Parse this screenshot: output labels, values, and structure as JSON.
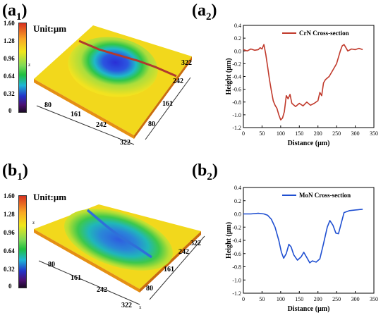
{
  "panels": {
    "a1": {
      "letter": "(a",
      "sub": "1",
      "close": ")"
    },
    "a2": {
      "letter": "(a",
      "sub": "2",
      "close": ")"
    },
    "b1": {
      "letter": "(b",
      "sub": "1",
      "close": ")"
    },
    "b2": {
      "letter": "(b",
      "sub": "2",
      "close": ")"
    }
  },
  "maps": {
    "unit": "Unit:μm",
    "colorbar_ticks": [
      "1.60",
      "1.28",
      "0.96",
      "0.64",
      "0.32",
      "0"
    ],
    "axis_ticks": [
      "80",
      "161",
      "242",
      "322"
    ],
    "z_label": "z",
    "x_label": "x"
  },
  "chart_data": [
    {
      "type": "line",
      "title": "",
      "legend": "CrN  Cross-section",
      "legend_position": "top-right",
      "xlabel": "Distance (μm)",
      "ylabel": "Height (μm)",
      "xlim": [
        0,
        350
      ],
      "ylim": [
        -1.2,
        0.4
      ],
      "xticks": [
        0,
        50,
        100,
        150,
        200,
        250,
        300,
        350
      ],
      "yticks": [
        0.4,
        0.2,
        0.0,
        -0.2,
        -0.4,
        -0.6,
        -0.8,
        -1.0,
        -1.2
      ],
      "ytick_labels": [
        "0.4",
        "0.2",
        "0.0",
        "-0.2",
        "-0.4",
        "-0.6",
        "-0.8",
        "-1.0",
        "-1.2"
      ],
      "color": "#c0392b",
      "series": [
        {
          "x": [
            0,
            10,
            20,
            30,
            40,
            45,
            50,
            55,
            60,
            65,
            70,
            75,
            80,
            85,
            90,
            95,
            100,
            105,
            110,
            115,
            120,
            125,
            130,
            140,
            150,
            160,
            170,
            180,
            190,
            200,
            205,
            210,
            215,
            220,
            230,
            240,
            250,
            260,
            265,
            270,
            275,
            280,
            290,
            300,
            310,
            320
          ],
          "y": [
            0.02,
            0.0,
            0.03,
            0.01,
            0.02,
            0.05,
            0.03,
            0.1,
            -0.05,
            -0.25,
            -0.45,
            -0.62,
            -0.78,
            -0.85,
            -0.9,
            -1.0,
            -1.08,
            -1.05,
            -0.95,
            -0.7,
            -0.75,
            -0.68,
            -0.82,
            -0.87,
            -0.82,
            -0.86,
            -0.8,
            -0.85,
            -0.82,
            -0.78,
            -0.65,
            -0.7,
            -0.5,
            -0.45,
            -0.4,
            -0.3,
            -0.2,
            0.0,
            0.08,
            0.1,
            0.05,
            0.0,
            0.03,
            0.02,
            0.04,
            0.02
          ]
        }
      ]
    },
    {
      "type": "line",
      "title": "",
      "legend": "MoN  Cross-section",
      "legend_position": "top-right",
      "xlabel": "Distance (μm)",
      "ylabel": "Height (μm)",
      "xlim": [
        0,
        350
      ],
      "ylim": [
        -1.2,
        0.4
      ],
      "xticks": [
        0,
        50,
        100,
        150,
        200,
        250,
        300,
        350
      ],
      "yticks": [
        0.4,
        0.2,
        0.0,
        -0.2,
        -0.4,
        -0.6,
        -0.8,
        -1.0,
        -1.2
      ],
      "ytick_labels": [
        "0.4",
        "0.2",
        "0.0",
        "-0.2",
        "-0.4",
        "-0.6",
        "-0.8",
        "-1.0",
        "-1.2"
      ],
      "color": "#1f4fd1",
      "series": [
        {
          "x": [
            0,
            20,
            40,
            55,
            65,
            75,
            85,
            95,
            102,
            108,
            115,
            122,
            128,
            135,
            145,
            155,
            162,
            170,
            178,
            185,
            195,
            205,
            215,
            225,
            232,
            240,
            248,
            255,
            262,
            270,
            285,
            300,
            320
          ],
          "y": [
            0.0,
            0.0,
            0.01,
            0.0,
            -0.02,
            -0.08,
            -0.2,
            -0.4,
            -0.58,
            -0.67,
            -0.6,
            -0.46,
            -0.5,
            -0.62,
            -0.7,
            -0.65,
            -0.58,
            -0.66,
            -0.74,
            -0.71,
            -0.73,
            -0.68,
            -0.45,
            -0.2,
            -0.1,
            -0.17,
            -0.29,
            -0.3,
            -0.15,
            0.02,
            0.05,
            0.06,
            0.07
          ]
        }
      ]
    }
  ]
}
